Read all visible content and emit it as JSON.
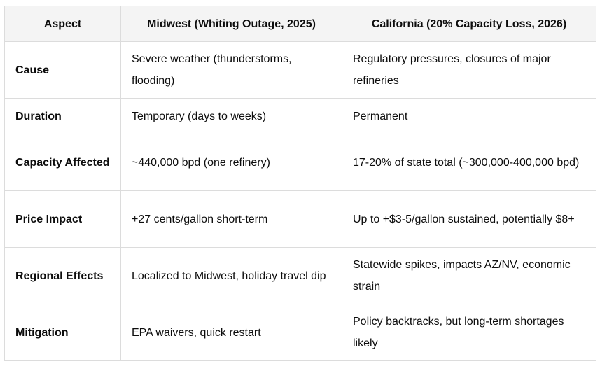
{
  "table": {
    "headers": [
      "Aspect",
      "Midwest (Whiting Outage, 2025)",
      "California (20% Capacity Loss, 2026)"
    ],
    "rows": [
      {
        "aspect": "Cause",
        "midwest": "Severe weather (thunderstorms, flooding)",
        "california": "Regulatory pressures, closures of major refineries"
      },
      {
        "aspect": "Duration",
        "midwest": "Temporary (days to weeks)",
        "california": "Permanent"
      },
      {
        "aspect": "Capacity Affected",
        "midwest": "~440,000 bpd (one refinery)",
        "california": "17-20% of state total (~300,000-400,000 bpd)"
      },
      {
        "aspect": "Price Impact",
        "midwest": "+27 cents/gallon short-term",
        "california": "Up to +$3-5/gallon sustained, potentially $8+"
      },
      {
        "aspect": "Regional Effects",
        "midwest": "Localized to Midwest, holiday travel dip",
        "california": "Statewide spikes, impacts AZ/NV, economic strain"
      },
      {
        "aspect": "Mitigation",
        "midwest": "EPA waivers, quick restart",
        "california": "Policy backtracks, but long-term shortages likely"
      }
    ]
  }
}
